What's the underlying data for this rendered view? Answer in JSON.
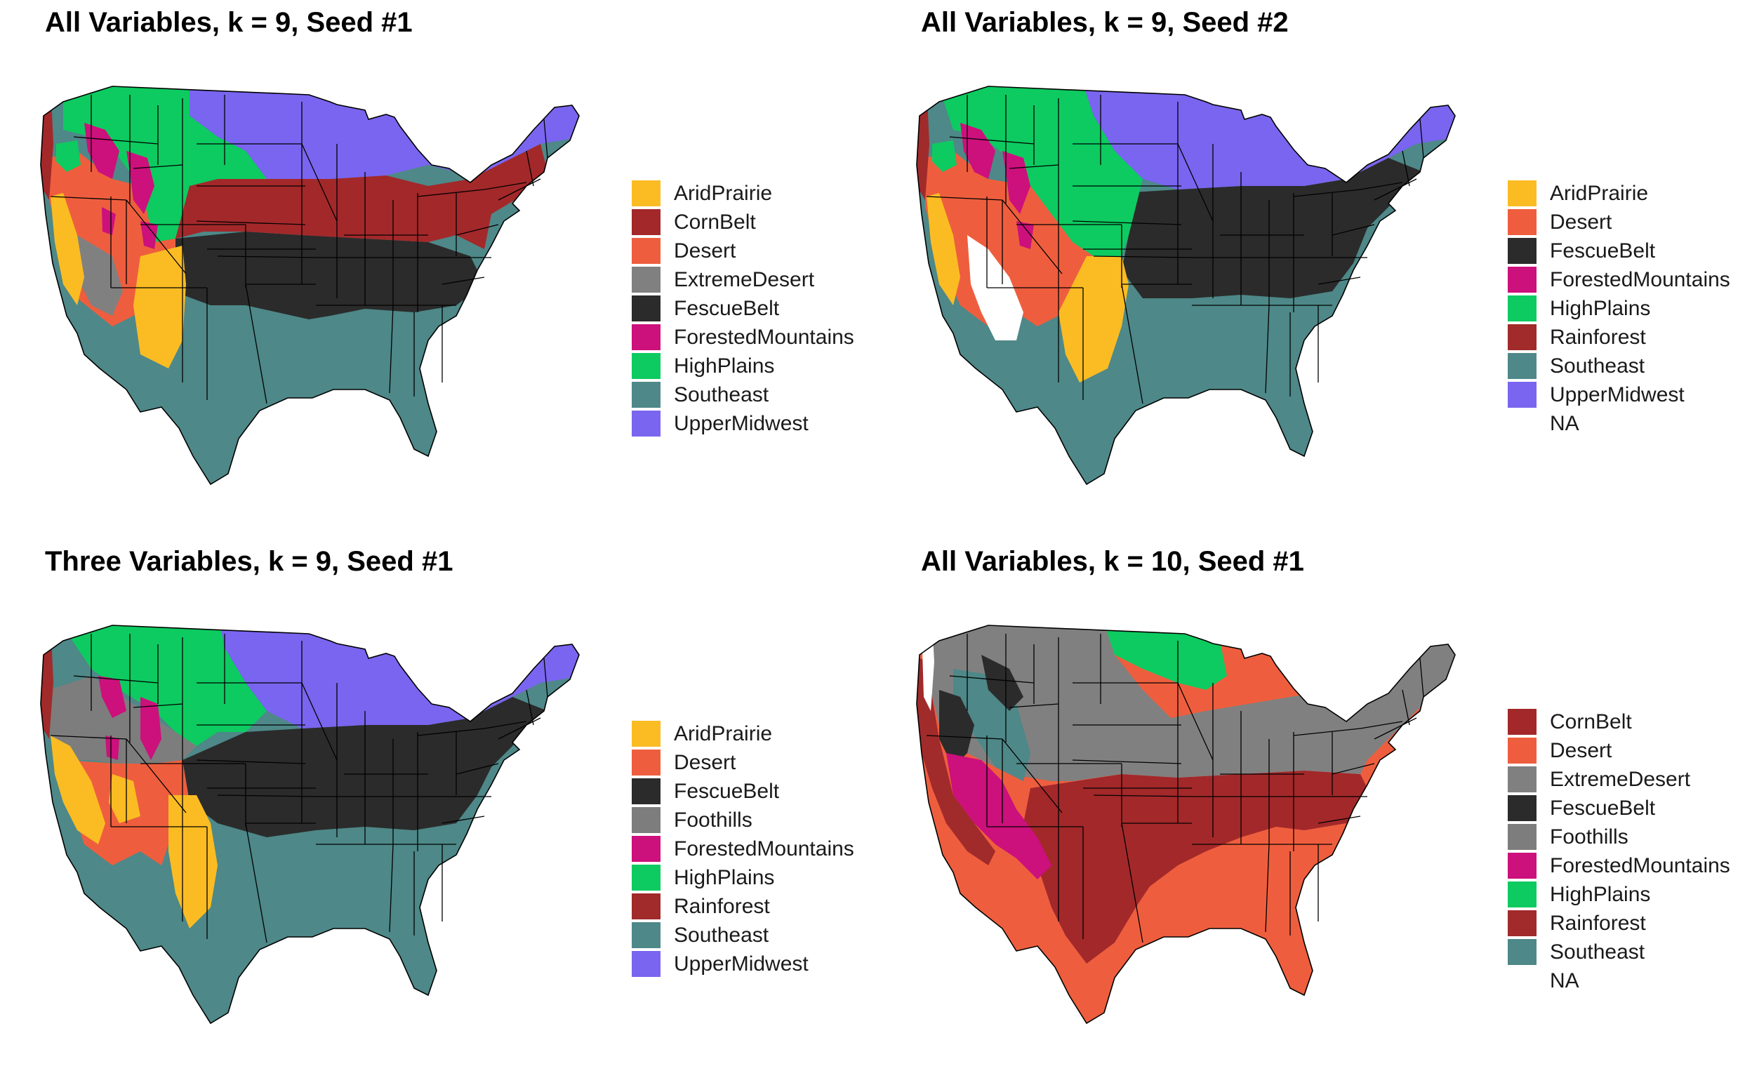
{
  "colors": {
    "AridPrairie": "#FBBC23",
    "CornBelt": "#A3282A",
    "Desert": "#EE5E3E",
    "ExtremeDesert": "#808080",
    "FescueBelt": "#2B2B2B",
    "Foothills": "#7D7D7D",
    "ForestedMountains": "#CC107C",
    "HighPlains": "#0DCB60",
    "Rainforest": "#A12A2A",
    "Southeast": "#4E8888",
    "UpperMidwest": "#7965EF",
    "NA": "#FFFFFF"
  },
  "panels": [
    {
      "title": "All Variables, k = 9, Seed #1",
      "legend": [
        {
          "label": "AridPrairie",
          "color": "#FBBC23"
        },
        {
          "label": "CornBelt",
          "color": "#A3282A"
        },
        {
          "label": "Desert",
          "color": "#EE5E3E"
        },
        {
          "label": "ExtremeDesert",
          "color": "#808080"
        },
        {
          "label": "FescueBelt",
          "color": "#2B2B2B"
        },
        {
          "label": "ForestedMountains",
          "color": "#CC107C"
        },
        {
          "label": "HighPlains",
          "color": "#0DCB60"
        },
        {
          "label": "Southeast",
          "color": "#4E8888"
        },
        {
          "label": "UpperMidwest",
          "color": "#7965EF"
        }
      ]
    },
    {
      "title": "All Variables, k = 9, Seed #2",
      "legend": [
        {
          "label": "AridPrairie",
          "color": "#FBBC23"
        },
        {
          "label": "Desert",
          "color": "#EE5E3E"
        },
        {
          "label": "FescueBelt",
          "color": "#2B2B2B"
        },
        {
          "label": "ForestedMountains",
          "color": "#CC107C"
        },
        {
          "label": "HighPlains",
          "color": "#0DCB60"
        },
        {
          "label": "Rainforest",
          "color": "#A12A2A"
        },
        {
          "label": "Southeast",
          "color": "#4E8888"
        },
        {
          "label": "UpperMidwest",
          "color": "#7965EF"
        },
        {
          "label": "NA",
          "color": "#FFFFFF"
        }
      ]
    },
    {
      "title": "Three Variables, k = 9, Seed #1",
      "legend": [
        {
          "label": "AridPrairie",
          "color": "#FBBC23"
        },
        {
          "label": "Desert",
          "color": "#EE5E3E"
        },
        {
          "label": "FescueBelt",
          "color": "#2B2B2B"
        },
        {
          "label": "Foothills",
          "color": "#7D7D7D"
        },
        {
          "label": "ForestedMountains",
          "color": "#CC107C"
        },
        {
          "label": "HighPlains",
          "color": "#0DCB60"
        },
        {
          "label": "Rainforest",
          "color": "#A12A2A"
        },
        {
          "label": "Southeast",
          "color": "#4E8888"
        },
        {
          "label": "UpperMidwest",
          "color": "#7965EF"
        }
      ]
    },
    {
      "title": "All Variables, k = 10, Seed #1",
      "legend": [
        {
          "label": "CornBelt",
          "color": "#A3282A"
        },
        {
          "label": "Desert",
          "color": "#EE5E3E"
        },
        {
          "label": "ExtremeDesert",
          "color": "#808080"
        },
        {
          "label": "FescueBelt",
          "color": "#2B2B2B"
        },
        {
          "label": "Foothills",
          "color": "#7D7D7D"
        },
        {
          "label": "ForestedMountains",
          "color": "#CC107C"
        },
        {
          "label": "HighPlains",
          "color": "#0DCB60"
        },
        {
          "label": "Rainforest",
          "color": "#A12A2A"
        },
        {
          "label": "Southeast",
          "color": "#4E8888"
        },
        {
          "label": "NA",
          "color": "#FFFFFF"
        }
      ]
    }
  ]
}
